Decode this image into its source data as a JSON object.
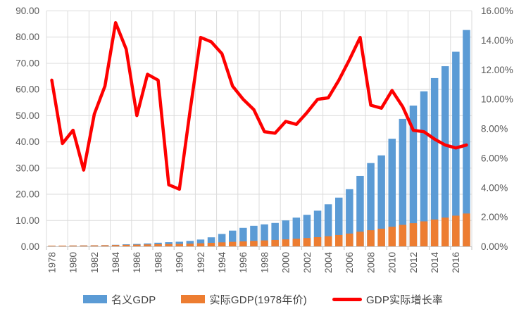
{
  "chart_data": {
    "type": "bar",
    "subtype": "combo-bar-line-dual-axis",
    "title": "",
    "categories": [
      1978,
      1979,
      1980,
      1981,
      1982,
      1983,
      1984,
      1985,
      1986,
      1987,
      1988,
      1989,
      1990,
      1991,
      1992,
      1993,
      1994,
      1995,
      1996,
      1997,
      1998,
      1999,
      2000,
      2001,
      2002,
      2003,
      2004,
      2005,
      2006,
      2007,
      2008,
      2009,
      2010,
      2011,
      2012,
      2013,
      2014,
      2015,
      2016,
      2017
    ],
    "series": [
      {
        "id": "nominal-gdp",
        "name": "名义GDP",
        "type": "bar",
        "axis": "left",
        "color": "#5B9BD5",
        "values": [
          0.37,
          0.41,
          0.46,
          0.49,
          0.54,
          0.6,
          0.73,
          0.91,
          1.04,
          1.22,
          1.52,
          1.72,
          1.89,
          2.2,
          2.72,
          3.57,
          4.86,
          6.13,
          7.18,
          7.97,
          8.52,
          9.06,
          10.03,
          11.09,
          12.17,
          13.74,
          16.18,
          18.73,
          21.94,
          27.01,
          31.92,
          34.85,
          41.21,
          48.79,
          53.86,
          59.3,
          64.36,
          68.89,
          74.41,
          82.71
        ]
      },
      {
        "id": "real-gdp",
        "name": "实际GDP(1978年价)",
        "type": "bar",
        "axis": "left",
        "color": "#ED7D31",
        "values": [
          0.37,
          0.4,
          0.43,
          0.45,
          0.49,
          0.54,
          0.62,
          0.71,
          0.77,
          0.86,
          0.96,
          1.0,
          1.04,
          1.13,
          1.29,
          1.47,
          1.66,
          1.85,
          2.03,
          2.22,
          2.39,
          2.57,
          2.79,
          3.02,
          3.3,
          3.63,
          3.99,
          4.45,
          5.01,
          5.72,
          6.28,
          6.87,
          7.6,
          8.32,
          8.97,
          9.67,
          10.38,
          11.1,
          11.84,
          12.66
        ]
      },
      {
        "id": "real-growth-rate",
        "name": "GDP实际增长率",
        "type": "line",
        "axis": "right",
        "color": "#FE0000",
        "values_percent": [
          11.3,
          7.0,
          7.9,
          5.2,
          9.0,
          10.9,
          15.2,
          13.4,
          8.9,
          11.7,
          11.3,
          4.2,
          3.9,
          9.2,
          14.2,
          13.9,
          13.1,
          10.9,
          10.0,
          9.3,
          7.8,
          7.7,
          8.5,
          8.3,
          9.1,
          10.0,
          10.1,
          11.3,
          12.7,
          14.2,
          9.6,
          9.4,
          10.6,
          9.5,
          7.9,
          7.8,
          7.3,
          6.9,
          6.7,
          6.9
        ]
      }
    ],
    "left_axis": {
      "min": 0,
      "max": 90,
      "step": 10,
      "tick_labels": [
        "0.00",
        "10.00",
        "20.00",
        "30.00",
        "40.00",
        "50.00",
        "60.00",
        "70.00",
        "80.00",
        "90.00"
      ]
    },
    "right_axis": {
      "min": 0,
      "max": 16,
      "step": 2,
      "tick_labels": [
        "0.00%",
        "2.00%",
        "4.00%",
        "6.00%",
        "8.00%",
        "10.00%",
        "12.00%",
        "14.00%",
        "16.00%"
      ]
    },
    "x_axis": {
      "label_rotation": -90,
      "tick_every": 2,
      "tick_labels": [
        "1978",
        "1980",
        "1982",
        "1984",
        "1986",
        "1988",
        "1990",
        "1992",
        "1994",
        "1996",
        "1998",
        "2000",
        "2002",
        "2004",
        "2006",
        "2008",
        "2010",
        "2012",
        "2014",
        "2016"
      ]
    },
    "legend": {
      "position": "bottom",
      "entries": [
        "名义GDP",
        "实际GDP(1978年价)",
        "GDP实际增长率"
      ]
    },
    "grid": {
      "horizontal": true,
      "vertical": true,
      "color": "#DBDBDB"
    },
    "styles": {
      "axis_text_color": "#595959",
      "legend_text_color": "#3F3F3F",
      "axis_line_color": "#C9C9C9",
      "tick_mark_color": "#BFBFBF",
      "background": "#FFFFFF",
      "line_width": 4.5,
      "bar_width": 10.5
    }
  }
}
